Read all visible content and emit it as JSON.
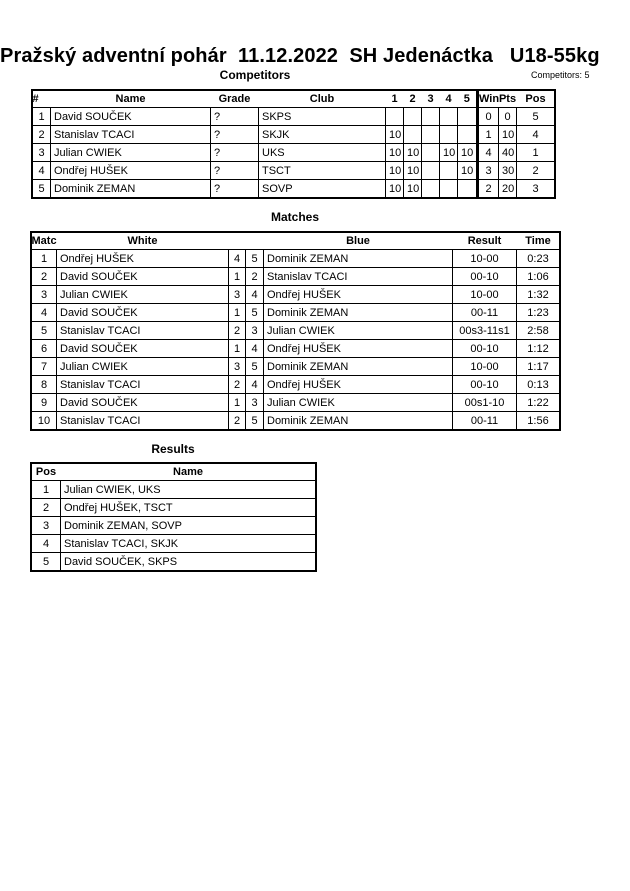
{
  "title": "Pražský adventní pohár  11.12.2022  SH Jedenáctka   U18-55kg",
  "competitors": {
    "heading": "Competitors",
    "count_label": "Competitors: 5",
    "headers": [
      "#",
      "Name",
      "Grade",
      "Club",
      "1",
      "2",
      "3",
      "4",
      "5",
      "Wins",
      "Pts",
      "Pos"
    ],
    "rows": [
      [
        "1",
        "David SOUČEK",
        "?",
        "SKPS",
        "",
        "",
        "",
        "",
        "",
        "0",
        "0",
        "5"
      ],
      [
        "2",
        "Stanislav TCACI",
        "?",
        "SKJK",
        "10",
        "",
        "",
        "",
        "",
        "1",
        "10",
        "4"
      ],
      [
        "3",
        "Julian CWIEK",
        "?",
        "UKS",
        "10",
        "10",
        "",
        "10",
        "10",
        "4",
        "40",
        "1"
      ],
      [
        "4",
        "Ondřej HUŠEK",
        "?",
        "TSCT",
        "10",
        "10",
        "",
        "",
        "10",
        "3",
        "30",
        "2"
      ],
      [
        "5",
        "Dominik ZEMAN",
        "?",
        "SOVP",
        "10",
        "10",
        "",
        "",
        "",
        "2",
        "20",
        "3"
      ]
    ]
  },
  "matches": {
    "heading": "Matches",
    "headers": [
      "Match",
      "White",
      "",
      "",
      "Blue",
      "Result",
      "Time"
    ],
    "rows": [
      [
        "1",
        "Ondřej HUŠEK",
        "4",
        "5",
        "Dominik ZEMAN",
        "10-00",
        "0:23"
      ],
      [
        "2",
        "David SOUČEK",
        "1",
        "2",
        "Stanislav TCACI",
        "00-10",
        "1:06"
      ],
      [
        "3",
        "Julian CWIEK",
        "3",
        "4",
        "Ondřej HUŠEK",
        "10-00",
        "1:32"
      ],
      [
        "4",
        "David SOUČEK",
        "1",
        "5",
        "Dominik ZEMAN",
        "00-11",
        "1:23"
      ],
      [
        "5",
        "Stanislav TCACI",
        "2",
        "3",
        "Julian CWIEK",
        "00s3-11s1",
        "2:58"
      ],
      [
        "6",
        "David SOUČEK",
        "1",
        "4",
        "Ondřej HUŠEK",
        "00-10",
        "1:12"
      ],
      [
        "7",
        "Julian CWIEK",
        "3",
        "5",
        "Dominik ZEMAN",
        "10-00",
        "1:17"
      ],
      [
        "8",
        "Stanislav TCACI",
        "2",
        "4",
        "Ondřej HUŠEK",
        "00-10",
        "0:13"
      ],
      [
        "9",
        "David SOUČEK",
        "1",
        "3",
        "Julian CWIEK",
        "00s1-10",
        "1:22"
      ],
      [
        "10",
        "Stanislav TCACI",
        "2",
        "5",
        "Dominik ZEMAN",
        "00-11",
        "1:56"
      ]
    ]
  },
  "results": {
    "heading": "Results",
    "headers": [
      "Pos",
      "Name"
    ],
    "rows": [
      [
        "1",
        "Julian CWIEK, UKS"
      ],
      [
        "2",
        "Ondřej HUŠEK, TSCT"
      ],
      [
        "3",
        "Dominik ZEMAN, SOVP"
      ],
      [
        "4",
        "Stanislav TCACI, SKJK"
      ],
      [
        "5",
        "David SOUČEK, SKPS"
      ]
    ]
  }
}
